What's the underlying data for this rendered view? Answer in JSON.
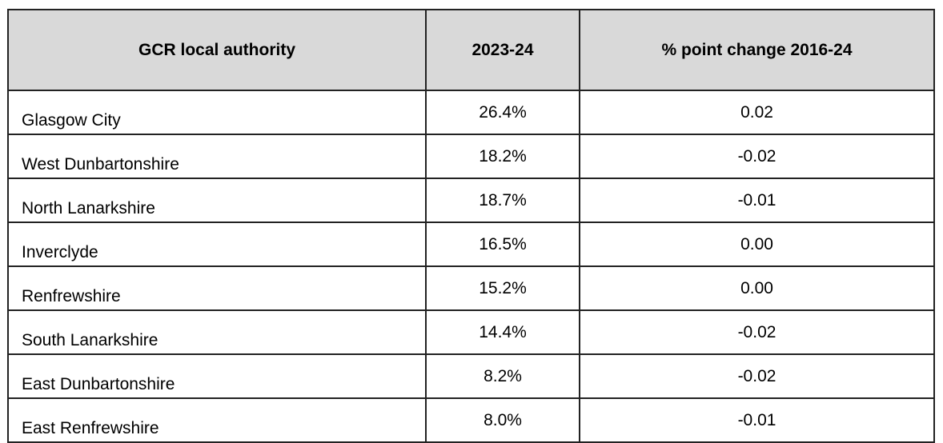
{
  "table": {
    "headers": [
      "GCR local authority",
      "2023-24",
      "% point change 2016-24"
    ],
    "rows": [
      [
        "Glasgow City",
        "26.4%",
        "0.02"
      ],
      [
        "West Dunbartonshire",
        "18.2%",
        "-0.02"
      ],
      [
        "North Lanarkshire",
        "18.7%",
        "-0.01"
      ],
      [
        "Inverclyde",
        "16.5%",
        "0.00"
      ],
      [
        "Renfrewshire",
        "15.2%",
        "0.00"
      ],
      [
        "South Lanarkshire",
        "14.4%",
        "-0.02"
      ],
      [
        "East Dunbartonshire",
        "8.2%",
        "-0.02"
      ],
      [
        "East Renfrewshire",
        "8.0%",
        "-0.01"
      ]
    ],
    "header_background": "#d9d9d9"
  }
}
